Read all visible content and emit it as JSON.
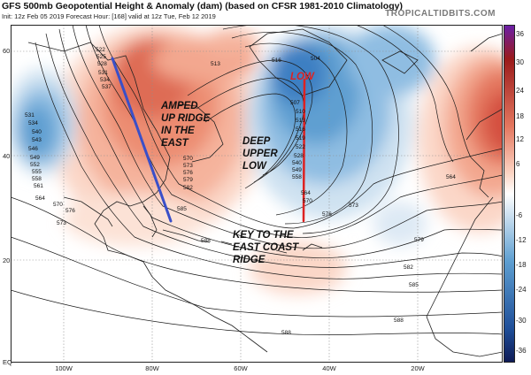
{
  "header": {
    "title": "GFS 500mb Geopotential Height & Anomaly (dam) (based on CFSR 1981-2010 Climatology)",
    "subtitle": "Init: 12z Feb 05 2019   Forecast Hour: [168]   valid at 12z Tue, Feb 12 2019",
    "site": "TROPICALTIDBITS.COM"
  },
  "axes": {
    "lat_labels": [
      "60N",
      "40N",
      "20N",
      "EQ"
    ],
    "lon_labels": [
      "100W",
      "80W",
      "60W",
      "40W",
      "20W"
    ]
  },
  "colorbar": {
    "ticks": [
      "36",
      "30",
      "24",
      "18",
      "12",
      "6",
      "-6",
      "-12",
      "-18",
      "-24",
      "-30",
      "-36"
    ],
    "colors": {
      "max": "#6a1fa8",
      "strong_pos": "#9a1a1a",
      "pos": "#e4775f",
      "weak_pos": "#fcd5c4",
      "neutral": "#ffffff",
      "weak_neg": "#cfe2f1",
      "neg": "#5e9fd1",
      "strong_neg": "#1f4f99",
      "min": "#0e1a55"
    }
  },
  "annotations": {
    "ridge_text": [
      "AMPED",
      "UP RIDGE",
      "IN THE",
      "EAST"
    ],
    "low_text": "LOW",
    "trough_text": [
      "DEEP",
      "UPPER",
      "LOW"
    ],
    "key_text": [
      "KEY TO THE",
      "EAST COAST",
      "RIDGE"
    ],
    "ridge_line_color": "#3a4fc8",
    "trough_line_color": "#dd2222"
  },
  "contour_labels": [
    "522",
    "525",
    "528",
    "531",
    "534",
    "537",
    "540",
    "543",
    "546",
    "549",
    "552",
    "555",
    "558",
    "561",
    "564",
    "567",
    "570",
    "573",
    "576",
    "579",
    "582",
    "585",
    "588",
    "504",
    "507",
    "510",
    "513",
    "516",
    "519"
  ]
}
